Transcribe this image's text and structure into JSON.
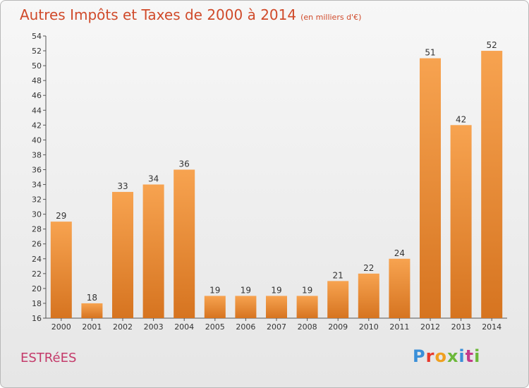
{
  "header": {
    "title": "Autres Impôts et Taxes de 2000 à 2014",
    "unit": "(en milliers d'€)"
  },
  "footer": {
    "place": "ESTRéES",
    "logo": "Proxiti"
  },
  "colors": {
    "bar_light": "#f7a350",
    "bar_dark": "#d67420",
    "title": "#d04a2a",
    "place": "#c43a6a"
  },
  "chart_data": {
    "type": "bar",
    "title": "Autres Impôts et Taxes de 2000 à 2014",
    "subtitle": "(en milliers d'€)",
    "xlabel": "",
    "ylabel": "",
    "categories": [
      "2000",
      "2001",
      "2002",
      "2003",
      "2004",
      "2005",
      "2006",
      "2007",
      "2008",
      "2009",
      "2010",
      "2011",
      "2012",
      "2013",
      "2014"
    ],
    "values": [
      29,
      18,
      33,
      34,
      36,
      19,
      19,
      19,
      19,
      21,
      22,
      24,
      51,
      42,
      52
    ],
    "ylim": [
      16,
      54
    ],
    "yticks": [
      16,
      18,
      20,
      22,
      24,
      26,
      28,
      30,
      32,
      34,
      36,
      38,
      40,
      42,
      44,
      46,
      48,
      50,
      52,
      54
    ],
    "grid": false,
    "data_labels": true
  }
}
